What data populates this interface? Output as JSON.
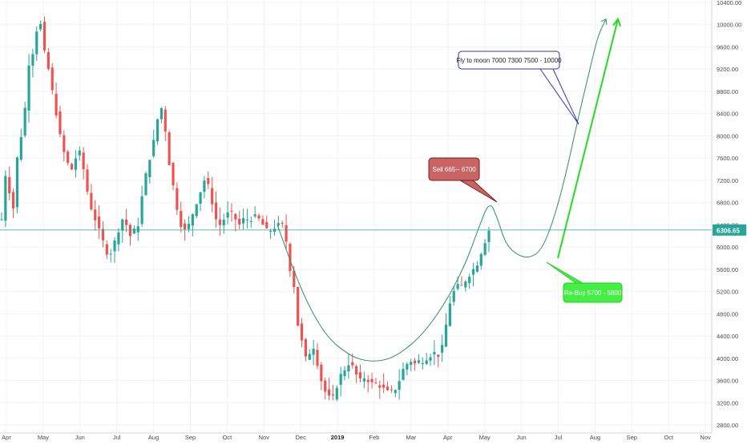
{
  "chart_data": {
    "type": "candlestick",
    "y_axis": {
      "ticks": [
        10400,
        10000,
        9600,
        9200,
        8800,
        8400,
        8000,
        7600,
        7200,
        6800,
        6400,
        6000,
        5600,
        5200,
        4800,
        4400,
        4000,
        3600,
        3200,
        2800
      ],
      "tick_labels": [
        "10400.00",
        "10000.00",
        "9600.00",
        "9200.00",
        "8800.00",
        "8400.00",
        "8000.00",
        "7600.00",
        "7200.00",
        "6800.00",
        "6400.00",
        "6000.00",
        "5600.00",
        "5200.00",
        "4800.00",
        "4400.00",
        "4000.00",
        "3600.00",
        "3200.00",
        "2800.00"
      ],
      "range": [
        2800,
        10400
      ]
    },
    "x_axis": {
      "tick_labels": [
        "Apr",
        "May",
        "Jun",
        "Jul",
        "Aug",
        "Sep",
        "Oct",
        "Nov",
        "Dec",
        "2019",
        "Feb",
        "Mar",
        "Apr",
        "May",
        "Jun",
        "Jul",
        "Aug",
        "Sep",
        "Oct",
        "Nov"
      ],
      "bold_label": "2019"
    },
    "current_price": {
      "value": 6306.65,
      "label": "6306.65",
      "color": "#26a69a"
    },
    "colors": {
      "up": "#26a69a",
      "down": "#ef5350",
      "projection": "#2e8b6e",
      "arrow_bright": "#22dd22"
    },
    "price_path": [
      6500,
      7300,
      7000,
      6700,
      7600,
      8000,
      8500,
      9300,
      9500,
      9900,
      10000,
      9500,
      9200,
      8800,
      8400,
      8000,
      7700,
      7500,
      7400,
      7600,
      7700,
      7400,
      7000,
      6700,
      6500,
      6300,
      6100,
      5900,
      5900,
      6100,
      6300,
      6500,
      6400,
      6200,
      6300,
      6400,
      6900,
      7300,
      7600,
      7900,
      8300,
      8500,
      8100,
      7500,
      7100,
      6700,
      6400,
      6300,
      6400,
      6600,
      6800,
      7000,
      7200,
      7100,
      6800,
      6500,
      6400,
      6500,
      6600,
      6600,
      6500,
      6400,
      6500,
      6500,
      6500,
      6550,
      6500,
      6400,
      6300,
      6300,
      6350,
      6400,
      6400,
      6100,
      5600,
      5300,
      4600,
      4300,
      4000,
      4100,
      4200,
      3900,
      3600,
      3400,
      3300,
      3300,
      3500,
      3700,
      3800,
      3900,
      3850,
      3700,
      3600,
      3650,
      3600,
      3550,
      3550,
      3500,
      3450,
      3400,
      3400,
      3450,
      3600,
      3800,
      3900,
      3950,
      3900,
      3950,
      3950,
      4000,
      4050,
      4100,
      4050,
      4200,
      4600,
      5000,
      5200,
      5300,
      5300,
      5400,
      5500,
      5600,
      5700,
      5900,
      6100,
      6300
    ],
    "annotations": [
      {
        "text": "Fly to moon 7000 7300 7500 - 10000",
        "border": "#3333bb",
        "fill": "#ffffff",
        "text_color": "#222222"
      },
      {
        "text": "Sell 665-- 6700",
        "border": "#7a1b1b",
        "fill": "#c86464",
        "text_color": "#ffffff"
      },
      {
        "text": "Re-Buy 5700 - 5800",
        "border": "#22cc22",
        "fill": "#44ee44",
        "text_color": "#ffffff"
      }
    ],
    "projection_path": [
      [
        0,
        6400
      ],
      [
        6,
        5200
      ],
      [
        12,
        4400
      ],
      [
        18,
        4050
      ],
      [
        22,
        3950
      ],
      [
        26,
        3950
      ],
      [
        30,
        4050
      ],
      [
        36,
        4400
      ],
      [
        42,
        5000
      ],
      [
        47,
        5700
      ],
      [
        50,
        6300
      ],
      [
        53,
        6850
      ],
      [
        55,
        6500
      ],
      [
        57,
        6050
      ],
      [
        60,
        5850
      ],
      [
        63,
        5800
      ],
      [
        66,
        5950
      ],
      [
        69,
        6500
      ],
      [
        72,
        7300
      ],
      [
        75,
        8300
      ],
      [
        78,
        9200
      ],
      [
        80,
        9800
      ],
      [
        82,
        10100
      ]
    ],
    "arrow_path": [
      [
        70,
        5800
      ],
      [
        85,
        10100
      ]
    ]
  }
}
